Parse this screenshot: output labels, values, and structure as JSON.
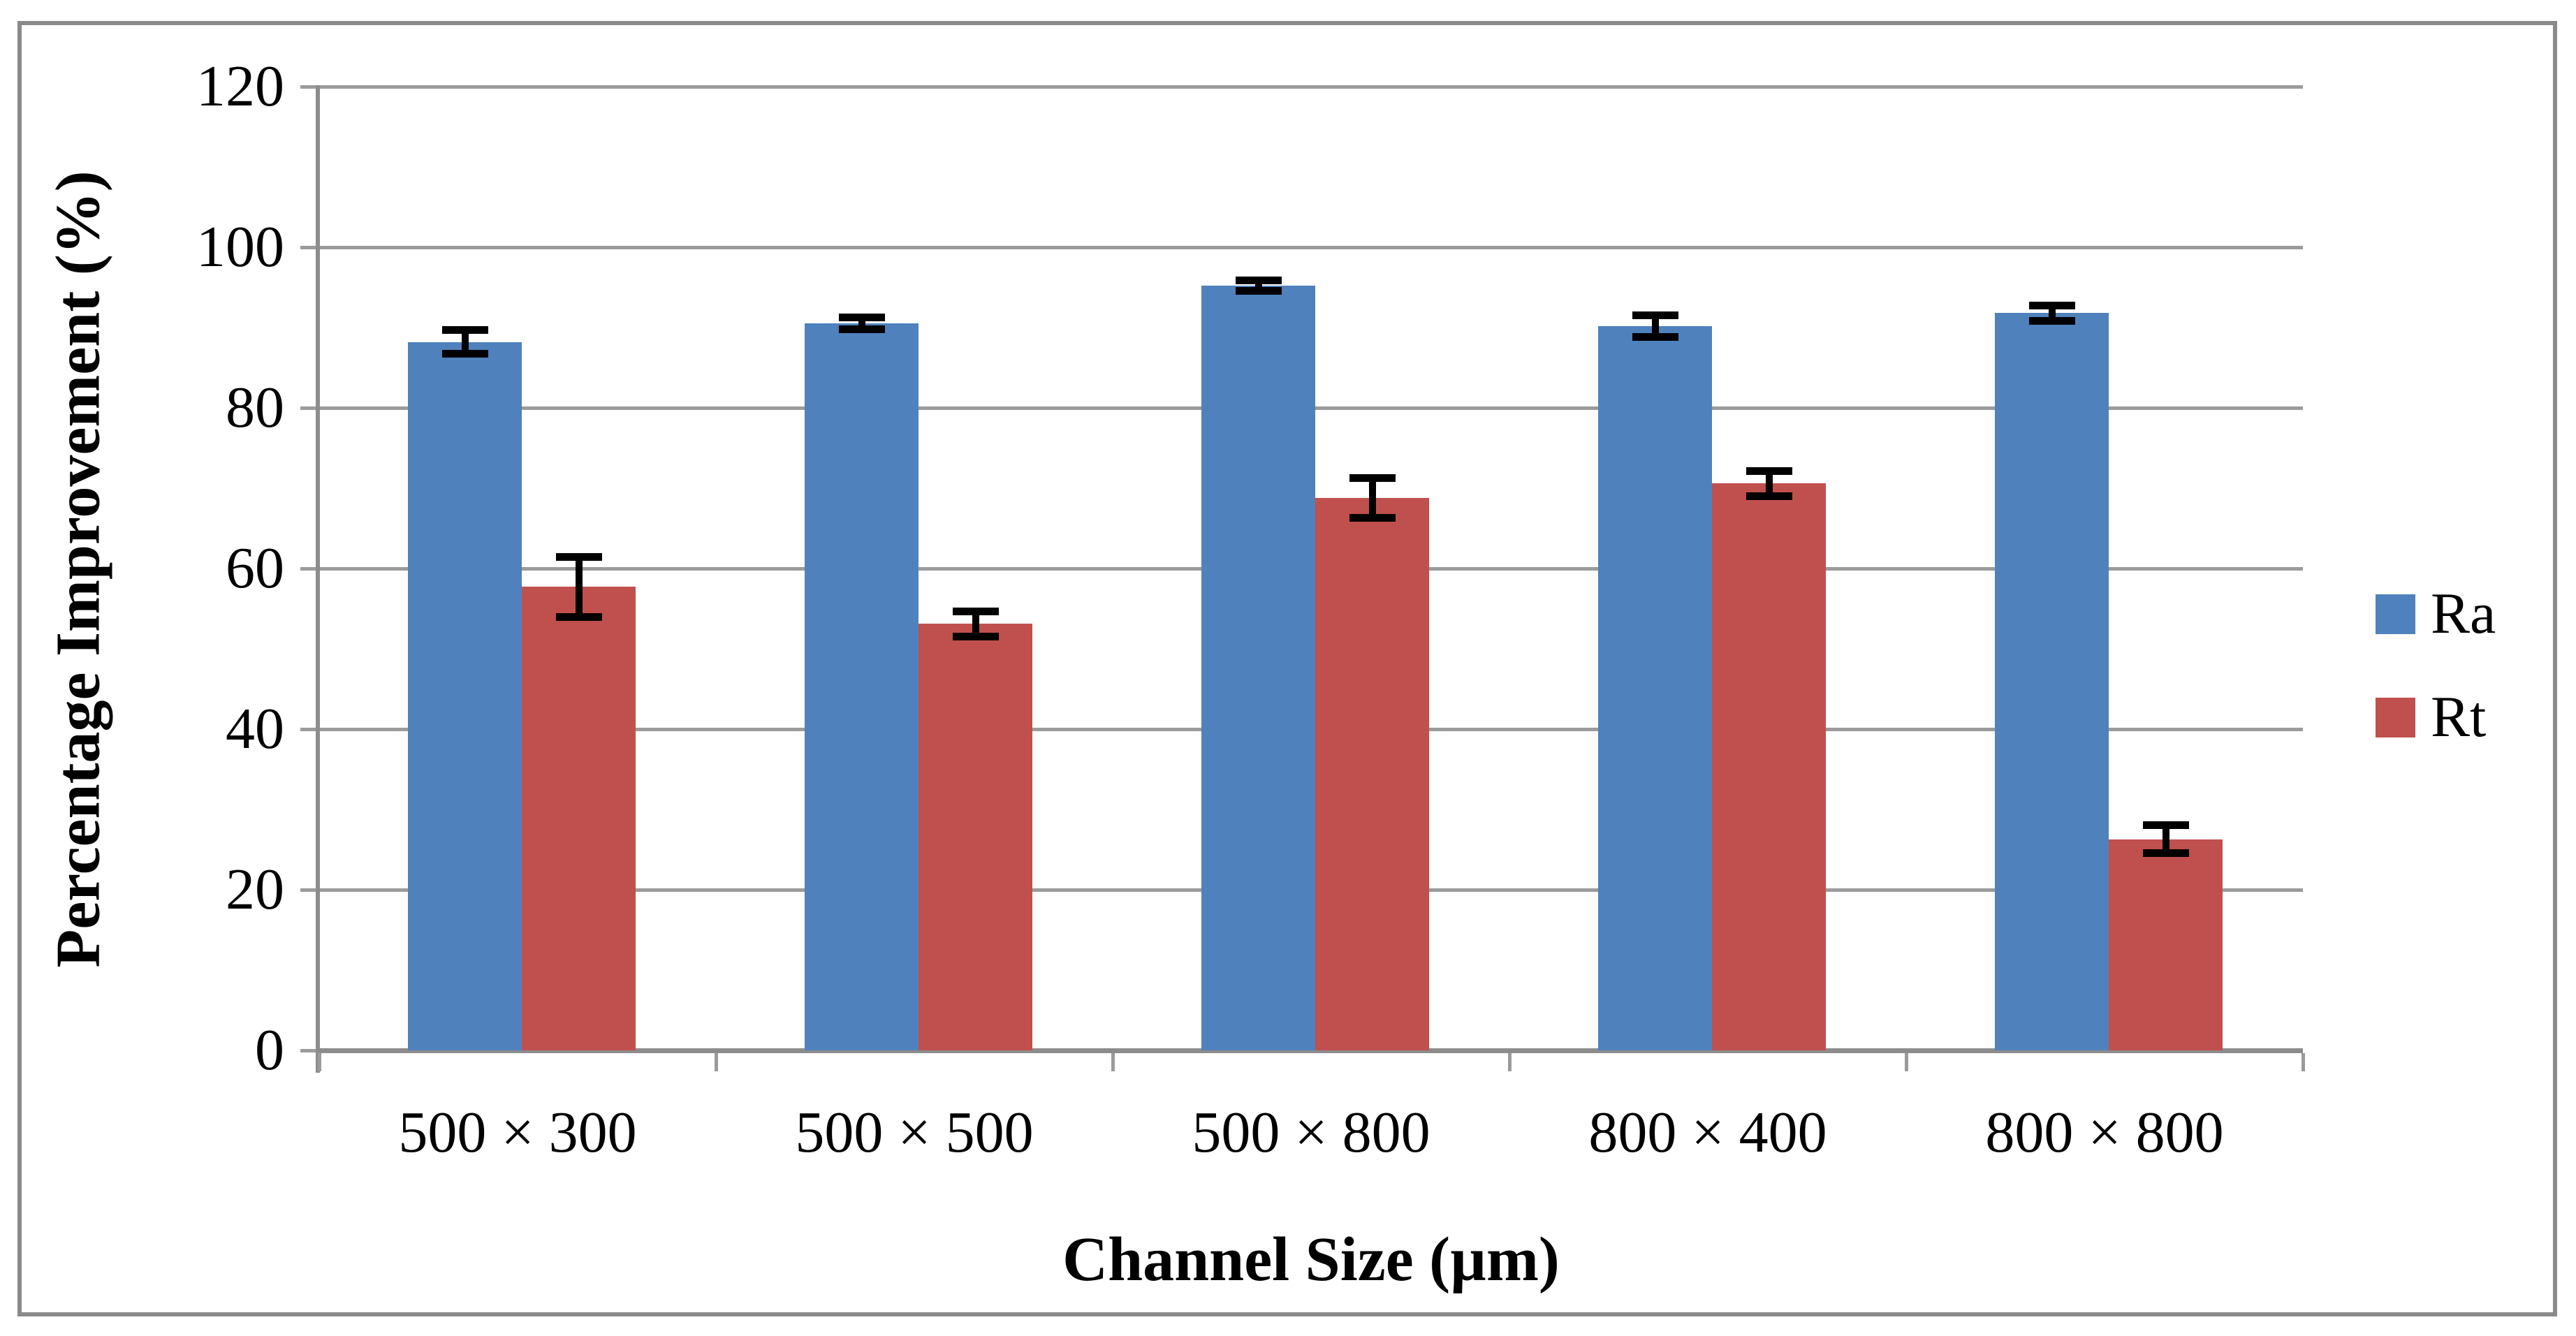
{
  "chart_data": {
    "type": "bar",
    "title": "",
    "categories": [
      "500 × 300",
      "500 × 500",
      "500 × 800",
      "800 × 400",
      "800 × 800"
    ],
    "series": [
      {
        "name": "Ra",
        "color": "#4F81BD",
        "values": [
          88.2,
          90.5,
          95.2,
          90.2,
          91.8
        ],
        "errors": [
          1.5,
          0.8,
          0.7,
          1.4,
          1.0
        ]
      },
      {
        "name": "Rt",
        "color": "#C0504D",
        "values": [
          57.7,
          53.1,
          68.8,
          70.6,
          26.3
        ],
        "errors": [
          3.8,
          1.6,
          2.5,
          1.6,
          1.8
        ]
      }
    ],
    "xlabel": "Channel Size (µm)",
    "ylabel": "Percentage Improvement (%)",
    "ylim": [
      0,
      120
    ],
    "yticks": [
      0,
      20,
      40,
      60,
      80,
      100,
      120
    ],
    "grid": true,
    "legend_position": "right",
    "colors": {
      "grid": "#9b9b9b",
      "axis": "#8c8c8c",
      "frame": "#8a8a8a",
      "error_bar": "#000000",
      "background": "#ffffff",
      "text": "#000000"
    }
  }
}
